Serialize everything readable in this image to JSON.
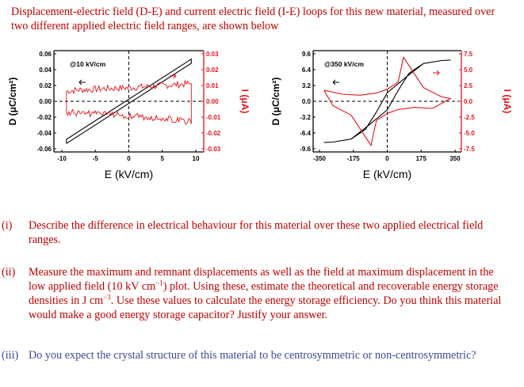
{
  "intro": "Displacement-electric field (D-E) and current electric field (I-E) loops for this new material, measured over two different applied electric field ranges, are shown below",
  "colors": {
    "text": "#c00000",
    "question3": "#3a4a9a",
    "dloop": "#000000",
    "iloop": "#e0141c"
  },
  "chart_data": [
    {
      "type": "line",
      "annotation": "@10 kV/cm",
      "xlabel": "E (kV/cm)",
      "ylabel_left": "D (μC/cm²)",
      "ylabel_right": "I (μA)",
      "xlim": [
        -12,
        12
      ],
      "ylim_left": [
        -0.06,
        0.06
      ],
      "ylim_right": [
        -0.03,
        0.03
      ],
      "x_ticks": [
        "-10",
        "-5",
        "0",
        "5",
        "10"
      ],
      "y_ticks_left": [
        "0.06",
        "0.04",
        "0.02",
        "0.00",
        "-0.02",
        "-0.04",
        "-0.06"
      ],
      "y_ticks_right": [
        "0.03",
        "0.02",
        "0.01",
        "0.00",
        "-0.01",
        "-0.02",
        "-0.03"
      ],
      "series": [
        {
          "axis": "left",
          "color": "#000000",
          "x": [
            -10,
            10,
            10,
            -10,
            -10
          ],
          "y": [
            -0.05,
            0.045,
            0.05,
            -0.045,
            -0.05
          ]
        },
        {
          "axis": "right",
          "color": "#e0141c",
          "x": [
            -10,
            -8,
            -6,
            -4,
            -2,
            0,
            2,
            4,
            6,
            8,
            10,
            10,
            8,
            6,
            4,
            2,
            0,
            -2,
            -4,
            -6,
            -8,
            -10,
            -10
          ],
          "y": [
            0.006,
            0.0068,
            0.007,
            0.0075,
            0.0078,
            0.008,
            0.0085,
            0.009,
            0.0095,
            0.01,
            0.0105,
            -0.012,
            -0.011,
            -0.01,
            -0.0095,
            -0.009,
            -0.0085,
            -0.008,
            -0.0078,
            -0.0075,
            -0.007,
            -0.0068,
            0.006
          ]
        }
      ]
    },
    {
      "type": "line",
      "annotation": "@350 kV/cm",
      "xlabel": "E (kV/cm)",
      "ylabel_left": "D (μC/cm²)",
      "ylabel_right": "I (μA)",
      "xlim": [
        -410,
        410
      ],
      "ylim_left": [
        -11.8,
        11.8
      ],
      "ylim_right": [
        -9.2,
        9.2
      ],
      "x_ticks": [
        "-350",
        "-175",
        "0",
        "175",
        "350"
      ],
      "y_ticks_left": [
        "9.6",
        "6.4",
        "3.2",
        "0.0",
        "-3.2",
        "-6.4",
        "-9.6"
      ],
      "y_ticks_right": [
        "7.5",
        "5.0",
        "2.5",
        "0.0",
        "-2.5",
        "-5.0",
        "-7.5"
      ],
      "series": [
        {
          "axis": "left",
          "color": "#000000",
          "x": [
            -350,
            -300,
            -200,
            -100,
            0,
            60,
            120,
            200,
            300,
            350,
            300,
            200,
            100,
            0,
            -60,
            -120,
            -200,
            -300,
            -350
          ],
          "y": [
            -9.6,
            -9.5,
            -8.8,
            -5.5,
            -2.0,
            2.5,
            6.5,
            8.8,
            9.5,
            9.6,
            9.5,
            8.8,
            5.5,
            2.0,
            -2.5,
            -6.5,
            -8.8,
            -9.5,
            -9.6
          ]
        },
        {
          "axis": "right",
          "color": "#e0141c",
          "x": [
            -350,
            -250,
            -150,
            -60,
            0,
            60,
            90,
            130,
            200,
            300,
            350,
            250,
            150,
            60,
            0,
            -60,
            -90,
            -130,
            -200,
            -300,
            -350
          ],
          "y": [
            2.0,
            1.3,
            1.1,
            1.5,
            2.2,
            3.5,
            8.0,
            6.0,
            2.5,
            0.8,
            0.5,
            -1.3,
            -1.1,
            -1.5,
            -2.2,
            -3.5,
            -8.0,
            -6.0,
            -2.5,
            -0.8,
            2.0
          ]
        }
      ]
    }
  ],
  "questions": [
    {
      "num": "(i)",
      "text": "Describe the difference in electrical behaviour for this material over these two applied electrical field ranges."
    },
    {
      "num": "(ii)",
      "text_a": "Measure the maximum and remnant displacements as well as the field at maximum displacement in the low applied field (10 kV cm",
      "sup1": "−1",
      "text_b": ") plot. Using these, estimate the theoretical and recoverable energy storage densities in J cm",
      "sup2": "−3",
      "text_c": ". Use these values to calculate the energy storage efficiency. Do you think this material would make a good energy storage capacitor? Justify your answer."
    },
    {
      "num": "(iii)",
      "text": "Do you expect the crystal structure of this material to be centrosymmetric or non-centrosymmetric?"
    }
  ]
}
